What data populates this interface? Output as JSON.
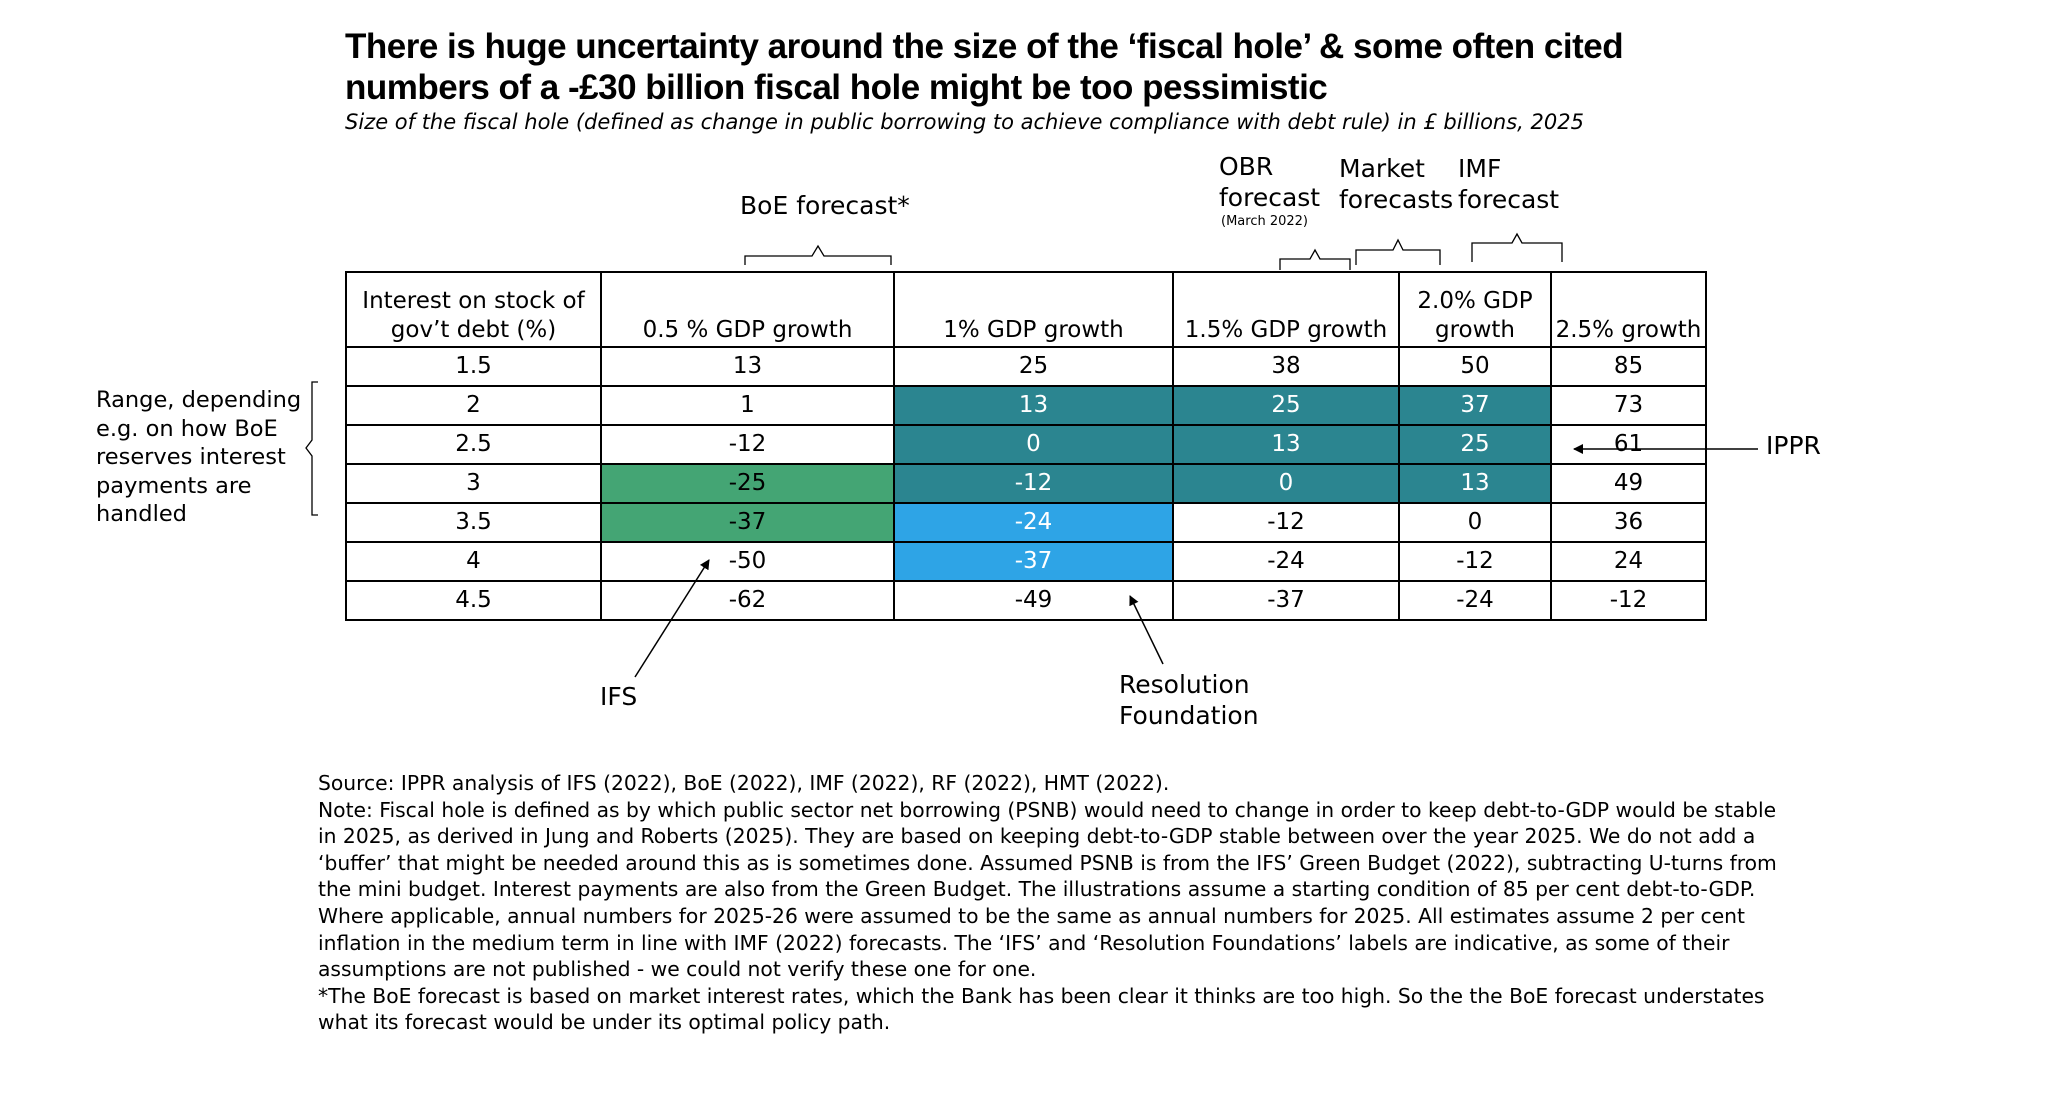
{
  "title_lines": [
    "There is huge uncertainty around the size of the ‘fiscal hole’ & some often cited",
    "numbers of a -£30 billion fiscal hole might be too pessimistic"
  ],
  "subtitle": "Size of the fiscal hole (defined as change in public borrowing to achieve compliance with debt rule) in £ billions, 2025",
  "annotations": {
    "boe": "BoE forecast*",
    "obr_lines": [
      "OBR",
      "forecast"
    ],
    "obr_note": "(March 2022)",
    "market_lines": [
      "Market",
      "forecasts"
    ],
    "imf_lines": [
      "IMF",
      "forecast"
    ],
    "range_lines": [
      "Range, depending",
      "e.g. on how BoE",
      "reserves interest",
      "payments are",
      "handled"
    ],
    "ippr": "IPPR",
    "ifs": "IFS",
    "rf_lines": [
      "Resolution",
      "Foundation"
    ]
  },
  "colors": {
    "teal": "#2b8590",
    "green": "#44a574",
    "blue": "#2ea4e6"
  },
  "chart_data": {
    "type": "table",
    "title": "There is huge uncertainty around the size of the ‘fiscal hole’ & some often cited numbers of a -£30 billion fiscal hole might be too pessimistic",
    "row_header_lines": [
      "Interest on stock of",
      "gov’t debt (%)"
    ],
    "columns": [
      [
        "0.5 % GDP growth"
      ],
      [
        "1% GDP growth"
      ],
      [
        "1.5% GDP growth"
      ],
      [
        "2.0% GDP",
        "growth"
      ],
      [
        "2.5% growth"
      ]
    ],
    "rows": [
      {
        "rate": "1.5",
        "values": [
          "13",
          "25",
          "38",
          "50",
          "85"
        ]
      },
      {
        "rate": "2",
        "values": [
          "1",
          "13",
          "25",
          "37",
          "73"
        ]
      },
      {
        "rate": "2.5",
        "values": [
          "-12",
          "0",
          "13",
          "25",
          "61"
        ]
      },
      {
        "rate": "3",
        "values": [
          "-25",
          "-12",
          "0",
          "13",
          "49"
        ]
      },
      {
        "rate": "3.5",
        "values": [
          "-37",
          "-24",
          "-12",
          "0",
          "36"
        ]
      },
      {
        "rate": "4",
        "values": [
          "-50",
          "-37",
          "-24",
          "-12",
          "24"
        ]
      },
      {
        "rate": "4.5",
        "values": [
          "-62",
          "-49",
          "-37",
          "-24",
          "-12"
        ]
      }
    ],
    "highlights": {
      "IPPR": [
        [
          1,
          1
        ],
        [
          1,
          2
        ],
        [
          1,
          3
        ],
        [
          2,
          1
        ],
        [
          2,
          2
        ],
        [
          2,
          3
        ],
        [
          3,
          1
        ],
        [
          3,
          2
        ],
        [
          3,
          3
        ]
      ],
      "IFS": [
        [
          3,
          0
        ],
        [
          4,
          0
        ]
      ],
      "Resolution Foundation": [
        [
          4,
          1
        ],
        [
          5,
          1
        ]
      ]
    },
    "unit": "£ billions, 2025"
  },
  "notes": [
    "Source: IPPR analysis of IFS (2022), BoE (2022), IMF (2022), RF (2022), HMT (2022).",
    "Note: Fiscal hole is defined as by which public sector net borrowing (PSNB) would need to change in order to keep debt-to-GDP would be stable",
    "in 2025, as derived in Jung and Roberts (2025). They are based on keeping debt-to-GDP stable between over the year 2025. We do not add a",
    "‘buffer’ that might be needed around this as is sometimes done. Assumed PSNB is from the IFS’ Green Budget (2022), subtracting U-turns from",
    "the mini budget. Interest payments are also from the Green Budget. The illustrations assume a starting condition of 85 per cent debt-to-GDP.",
    "Where applicable, annual numbers for 2025-26 were assumed to be the same as annual numbers for 2025. All estimates assume 2 per cent",
    "inflation in the medium term in line with IMF (2022) forecasts. The ‘IFS’ and ‘Resolution Foundations’ labels are indicative, as some of their",
    "assumptions are not published - we could not verify these one for one.",
    "*The BoE forecast is based on market interest rates, which the Bank has been clear it thinks are too high. So the the BoE forecast understates",
    "what its forecast would be under its optimal policy path."
  ]
}
